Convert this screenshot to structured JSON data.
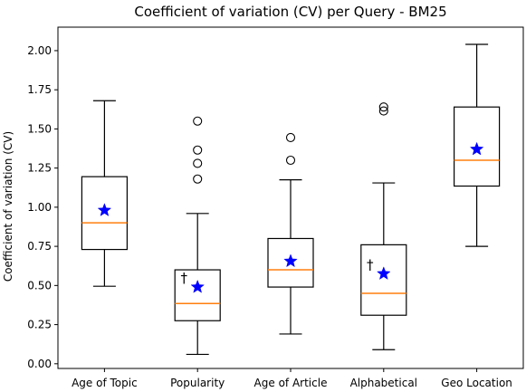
{
  "chart_data": {
    "type": "boxplot",
    "title": "Coefficient of variation (CV) per Query - BM25",
    "xlabel": "",
    "ylabel": "Coefficient of variation (CV)",
    "ylim": [
      -0.03,
      2.15
    ],
    "yticks": [
      0.0,
      0.25,
      0.5,
      0.75,
      1.0,
      1.25,
      1.5,
      1.75,
      2.0
    ],
    "ytick_labels": [
      "0.00",
      "0.25",
      "0.50",
      "0.75",
      "1.00",
      "1.25",
      "1.50",
      "1.75",
      "2.00"
    ],
    "categories": [
      "Age of Topic",
      "Popularity",
      "Age of Article",
      "Alphabetical",
      "Geo Location"
    ],
    "boxes": [
      {
        "category": "Age of Topic",
        "whisker_low": 0.495,
        "q1": 0.73,
        "median": 0.9,
        "q3": 1.195,
        "whisker_high": 1.68,
        "mean": 0.98,
        "outliers": [],
        "marker": ""
      },
      {
        "category": "Popularity",
        "whisker_low": 0.06,
        "q1": 0.275,
        "median": 0.385,
        "q3": 0.6,
        "whisker_high": 0.96,
        "mean": 0.49,
        "outliers": [
          1.18,
          1.28,
          1.365,
          1.55
        ],
        "marker": "†"
      },
      {
        "category": "Age of Article",
        "whisker_low": 0.19,
        "q1": 0.49,
        "median": 0.6,
        "q3": 0.8,
        "whisker_high": 1.175,
        "mean": 0.655,
        "outliers": [
          1.3,
          1.445
        ],
        "marker": ""
      },
      {
        "category": "Alphabetical",
        "whisker_low": 0.09,
        "q1": 0.31,
        "median": 0.45,
        "q3": 0.76,
        "whisker_high": 1.155,
        "mean": 0.575,
        "outliers": [
          1.615,
          1.64
        ],
        "marker": "†"
      },
      {
        "category": "Geo Location",
        "whisker_low": 0.75,
        "q1": 1.135,
        "median": 1.3,
        "q3": 1.64,
        "whisker_high": 2.04,
        "mean": 1.37,
        "outliers": [],
        "marker": ""
      }
    ],
    "colors": {
      "median": "#ff7f0e",
      "mean": "#0000ff",
      "box": "#000000"
    },
    "grid": false
  }
}
